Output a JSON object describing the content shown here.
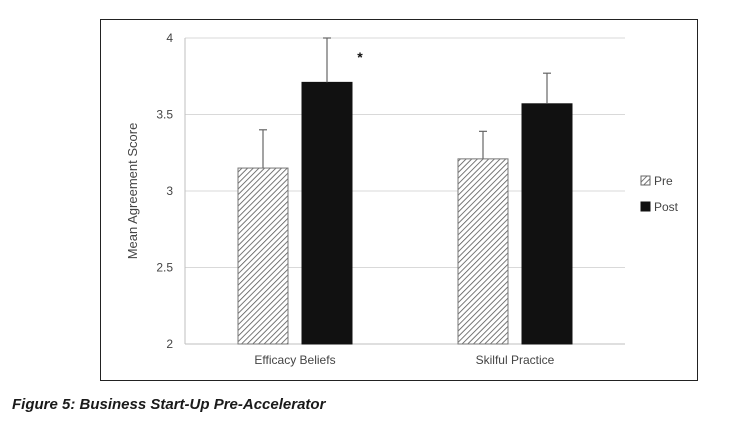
{
  "caption": "Figure 5: Business Start-Up Pre-Accelerator",
  "chart_data": {
    "type": "bar",
    "title": "",
    "xlabel": "",
    "ylabel": "Mean Agreement Score",
    "ylim": [
      2,
      4
    ],
    "yticks": [
      "2",
      "2.5",
      "3",
      "3.5",
      "4"
    ],
    "ytick_values": [
      2,
      2.5,
      3,
      3.5,
      4
    ],
    "grid": true,
    "legend_position": "right",
    "categories": [
      "Efficacy Beliefs",
      "Skilful Practice"
    ],
    "series": [
      {
        "name": "Pre",
        "values": [
          3.15,
          3.21
        ],
        "error": [
          0.25,
          0.18
        ],
        "pattern": "hatched",
        "color": "#555555"
      },
      {
        "name": "Post",
        "values": [
          3.71,
          3.57
        ],
        "error": [
          0.29,
          0.2
        ],
        "pattern": "solid",
        "color": "#111111"
      }
    ],
    "annotations": [
      {
        "text": "*",
        "category": "Efficacy Beliefs",
        "series": "Post"
      }
    ]
  }
}
